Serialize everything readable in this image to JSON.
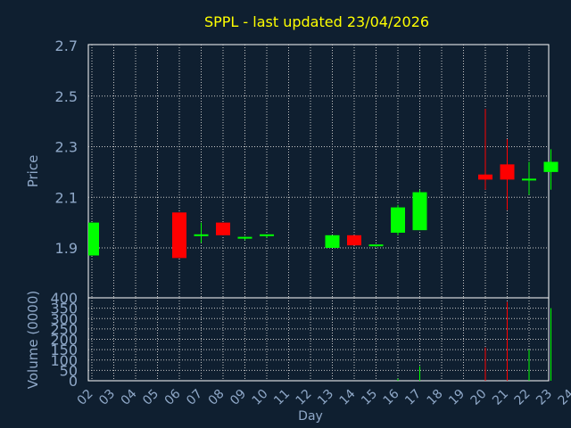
{
  "chart_data": {
    "type": "candlestick",
    "title": "SPPL - last updated 23/04/2026",
    "xlabel": "Day",
    "price_panel": {
      "ylabel": "Price",
      "ylim": [
        1.75,
        2.7
      ],
      "yticks": [
        "1.9",
        "2.1",
        "2.3",
        "2.5",
        "2.7"
      ],
      "grid": true
    },
    "volume_panel": {
      "ylabel": "Volume (0000)",
      "ylim": [
        0,
        400
      ],
      "yticks": [
        "0",
        "50",
        "100",
        "150",
        "200",
        "250",
        "300",
        "350",
        "400"
      ],
      "grid": true
    },
    "x_ticks": [
      "02",
      "03",
      "04",
      "05",
      "06",
      "07",
      "08",
      "09",
      "10",
      "11",
      "12",
      "13",
      "14",
      "15",
      "16",
      "17",
      "18",
      "19",
      "20",
      "21",
      "22",
      "23",
      "24"
    ],
    "candles": [
      {
        "day": "02",
        "open": 1.87,
        "close": 2.0,
        "high": 2.0,
        "low": 1.87,
        "volume": 0
      },
      {
        "day": "06",
        "open": 2.04,
        "close": 1.86,
        "high": 2.04,
        "low": 1.86,
        "volume": 0
      },
      {
        "day": "07",
        "open": 1.95,
        "close": 1.95,
        "high": 2.0,
        "low": 1.92,
        "volume": 0
      },
      {
        "day": "08",
        "open": 2.0,
        "close": 1.95,
        "high": 2.0,
        "low": 1.95,
        "volume": 0
      },
      {
        "day": "09",
        "open": 1.935,
        "close": 1.94,
        "high": 1.945,
        "low": 1.93,
        "volume": 0
      },
      {
        "day": "10",
        "open": 1.945,
        "close": 1.95,
        "high": 1.95,
        "low": 1.94,
        "volume": 0
      },
      {
        "day": "13",
        "open": 1.9,
        "close": 1.95,
        "high": 1.95,
        "low": 1.9,
        "volume": 0
      },
      {
        "day": "14",
        "open": 1.95,
        "close": 1.91,
        "high": 1.95,
        "low": 1.91,
        "volume": 0
      },
      {
        "day": "15",
        "open": 1.905,
        "close": 1.91,
        "high": 1.91,
        "low": 1.905,
        "volume": 0
      },
      {
        "day": "16",
        "open": 1.96,
        "close": 2.06,
        "high": 2.07,
        "low": 1.95,
        "volume": 10
      },
      {
        "day": "17",
        "open": 1.97,
        "close": 2.12,
        "high": 2.13,
        "low": 1.97,
        "volume": 70
      },
      {
        "day": "20",
        "open": 2.19,
        "close": 2.17,
        "high": 2.45,
        "low": 2.13,
        "volume": 160
      },
      {
        "day": "21",
        "open": 2.23,
        "close": 2.17,
        "high": 2.33,
        "low": 2.05,
        "volume": 380
      },
      {
        "day": "22",
        "open": 2.165,
        "close": 2.17,
        "high": 2.24,
        "low": 2.11,
        "volume": 150
      },
      {
        "day": "23",
        "open": 2.2,
        "close": 2.24,
        "high": 2.29,
        "low": 2.13,
        "volume": 350
      }
    ],
    "colors": {
      "up": "#00ff00",
      "down": "#ff0000",
      "title": "#ffff00",
      "axis_text": "#8fa8c8",
      "grid": "#c8c8c8",
      "background": "#0f1f30"
    }
  }
}
